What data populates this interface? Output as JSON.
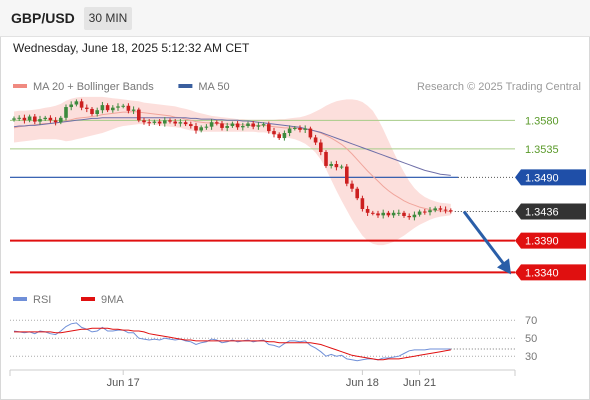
{
  "header": {
    "symbol": "GBP/USD",
    "interval": "30 MIN"
  },
  "datetime": "Wednesday, June 18, 2025 5:12:32 AM CET",
  "legend": [
    {
      "label": "MA 20 + Bollinger Bands",
      "color": "#f08a80"
    },
    {
      "label": "MA 50",
      "color": "#3a5f9e"
    }
  ],
  "copyright": "Research © 2025 Trading Central",
  "colors": {
    "bull": "#3d8a3d",
    "bear": "#cc1f1f",
    "resistance": "#1f4fa8",
    "support": "#e01010",
    "target": "#a7cc88",
    "price_tag": "#333333",
    "arrow": "#2a5ea8",
    "bb_fill": "#fbd7d3",
    "ma20": "#f0a59c",
    "ma50": "#6f6fa8",
    "rsi": "#6f8fd8",
    "rsi_ma": "#e01010"
  },
  "chart_data": {
    "type": "candlestick",
    "price_range": [
      1.332,
      1.362
    ],
    "levels": [
      {
        "value": 1.358,
        "label": "1.3580",
        "kind": "target"
      },
      {
        "value": 1.3535,
        "label": "1.3535",
        "kind": "target"
      },
      {
        "value": 1.349,
        "label": "1.3490",
        "kind": "resistance"
      },
      {
        "value": 1.3436,
        "label": "1.3436",
        "kind": "price"
      },
      {
        "value": 1.339,
        "label": "1.3390",
        "kind": "support"
      },
      {
        "value": 1.334,
        "label": "1.3340",
        "kind": "support"
      }
    ],
    "close": [
      1.3583,
      1.3584,
      1.358,
      1.3586,
      1.3578,
      1.3582,
      1.3584,
      1.358,
      1.3577,
      1.3584,
      1.3601,
      1.3605,
      1.361,
      1.36,
      1.3598,
      1.359,
      1.3596,
      1.3604,
      1.3596,
      1.36,
      1.3602,
      1.3603,
      1.3595,
      1.3597,
      1.358,
      1.3577,
      1.3576,
      1.3578,
      1.3575,
      1.358,
      1.3578,
      1.3575,
      1.3577,
      1.3574,
      1.3571,
      1.3564,
      1.3569,
      1.357,
      1.3577,
      1.3575,
      1.3568,
      1.3571,
      1.3575,
      1.3569,
      1.3571,
      1.3575,
      1.357,
      1.3572,
      1.3574,
      1.3563,
      1.3558,
      1.3552,
      1.356,
      1.3567,
      1.3568,
      1.3565,
      1.3567,
      1.3553,
      1.3545,
      1.353,
      1.3508,
      1.3511,
      1.3506,
      1.3507,
      1.348,
      1.3472,
      1.3457,
      1.344,
      1.3434,
      1.3433,
      1.343,
      1.3434,
      1.343,
      1.3434,
      1.3434,
      1.3429,
      1.3427,
      1.3431,
      1.3436,
      1.3435,
      1.3438,
      1.3441,
      1.3439,
      1.3438,
      1.3436
    ],
    "ma20": [
      1.3568,
      1.357,
      1.3571,
      1.3572,
      1.3573,
      1.3574,
      1.3575,
      1.3575,
      1.3576,
      1.3577,
      1.3579,
      1.3581,
      1.3583,
      1.3584,
      1.3585,
      1.3586,
      1.3587,
      1.3589,
      1.359,
      1.3591,
      1.3592,
      1.3593,
      1.3593,
      1.3594,
      1.3593,
      1.3592,
      1.3591,
      1.359,
      1.3589,
      1.3588,
      1.3587,
      1.3585,
      1.3584,
      1.3582,
      1.358,
      1.3578,
      1.3577,
      1.3576,
      1.3576,
      1.3575,
      1.3575,
      1.3574,
      1.3574,
      1.3573,
      1.3573,
      1.3572,
      1.3572,
      1.3572,
      1.3572,
      1.3571,
      1.357,
      1.3569,
      1.3568,
      1.3568,
      1.3568,
      1.3567,
      1.3566,
      1.3565,
      1.3563,
      1.356,
      1.3556,
      1.3552,
      1.3547,
      1.3542,
      1.3535,
      1.3527,
      1.3518,
      1.3509,
      1.35,
      1.3492,
      1.3484,
      1.3476,
      1.3469,
      1.3463,
      1.3458,
      1.3453,
      1.3449,
      1.3446,
      1.3443,
      1.3441,
      1.3439,
      1.3438,
      1.3437,
      1.3436,
      1.3436
    ],
    "bb_upper": [
      1.3594,
      1.3595,
      1.3595,
      1.3596,
      1.3597,
      1.3598,
      1.36,
      1.3601,
      1.3603,
      1.3606,
      1.3611,
      1.3614,
      1.3616,
      1.3617,
      1.3617,
      1.3617,
      1.3617,
      1.3617,
      1.3616,
      1.3615,
      1.3614,
      1.3613,
      1.3612,
      1.3611,
      1.361,
      1.3608,
      1.3607,
      1.3606,
      1.3605,
      1.3604,
      1.3603,
      1.3602,
      1.36,
      1.3598,
      1.3596,
      1.3593,
      1.3591,
      1.3589,
      1.3587,
      1.3586,
      1.3585,
      1.3584,
      1.3583,
      1.3582,
      1.3582,
      1.3581,
      1.3581,
      1.3581,
      1.3581,
      1.3581,
      1.3581,
      1.3582,
      1.3582,
      1.3583,
      1.3584,
      1.3585,
      1.3587,
      1.359,
      1.3594,
      1.3598,
      1.3603,
      1.3607,
      1.361,
      1.3612,
      1.3613,
      1.3613,
      1.3612,
      1.3609,
      1.3603,
      1.3595,
      1.3582,
      1.3566,
      1.3548,
      1.353,
      1.3513,
      1.3498,
      1.3484,
      1.3473,
      1.3465,
      1.3459,
      1.3455,
      1.3452,
      1.345,
      1.3449,
      1.3448
    ],
    "bb_lower": [
      1.3545,
      1.3546,
      1.3547,
      1.3548,
      1.3549,
      1.355,
      1.355,
      1.355,
      1.355,
      1.3549,
      1.3547,
      1.3548,
      1.355,
      1.3552,
      1.3554,
      1.3556,
      1.3558,
      1.356,
      1.3563,
      1.3566,
      1.3569,
      1.3571,
      1.3572,
      1.3573,
      1.3574,
      1.3574,
      1.3574,
      1.3573,
      1.3572,
      1.3571,
      1.357,
      1.3569,
      1.3568,
      1.3566,
      1.3564,
      1.3563,
      1.3562,
      1.3562,
      1.3562,
      1.3562,
      1.3562,
      1.3562,
      1.3562,
      1.3562,
      1.3562,
      1.3562,
      1.3562,
      1.3561,
      1.3561,
      1.356,
      1.3558,
      1.3556,
      1.3554,
      1.3552,
      1.355,
      1.3547,
      1.3543,
      1.3537,
      1.3529,
      1.3518,
      1.3503,
      1.3486,
      1.3469,
      1.3453,
      1.3438,
      1.3423,
      1.341,
      1.3398,
      1.339,
      1.3385,
      1.3383,
      1.3383,
      1.3385,
      1.3388,
      1.3393,
      1.3398,
      1.3404,
      1.341,
      1.3415,
      1.3419,
      1.3423,
      1.3426,
      1.3428,
      1.3429,
      1.343
    ],
    "ma50": [
      1.357,
      1.3571,
      1.3571,
      1.3572,
      1.3572,
      1.3573,
      1.3574,
      1.3575,
      1.3576,
      1.3577,
      1.3578,
      1.3579,
      1.358,
      1.3581,
      1.3582,
      1.3583,
      1.3583,
      1.3584,
      1.3584,
      1.3584,
      1.3584,
      1.3584,
      1.3584,
      1.3584,
      1.3584,
      1.3584,
      1.3584,
      1.3584,
      1.3584,
      1.3584,
      1.3584,
      1.3584,
      1.3584,
      1.3584,
      1.3583,
      1.3583,
      1.3582,
      1.3582,
      1.3582,
      1.3581,
      1.3581,
      1.358,
      1.358,
      1.358,
      1.3579,
      1.3579,
      1.3578,
      1.3577,
      1.3576,
      1.3575,
      1.3574,
      1.3573,
      1.3572,
      1.3571,
      1.357,
      1.3569,
      1.3567,
      1.3565,
      1.3563,
      1.3561,
      1.3558,
      1.3555,
      1.3552,
      1.3549,
      1.3546,
      1.3543,
      1.354,
      1.3537,
      1.3534,
      1.3531,
      1.3528,
      1.3525,
      1.3522,
      1.3519,
      1.3516,
      1.3513,
      1.351,
      1.3507,
      1.3504,
      1.3501,
      1.3499,
      1.3497,
      1.3495,
      1.3494,
      1.3493
    ],
    "projection": {
      "from": 1.3436,
      "to": 1.334
    },
    "x_ticks": [
      {
        "index": 21,
        "label": "Jun 17"
      },
      {
        "index": 67,
        "label": "Jun 18"
      },
      {
        "index": 78,
        "label": "Jun 21"
      }
    ],
    "rsi": {
      "legend": [
        {
          "label": "RSI",
          "color": "#6f8fd8"
        },
        {
          "label": "9MA",
          "color": "#e01010"
        }
      ],
      "levels": [
        {
          "value": 70,
          "label": "70"
        },
        {
          "value": 50,
          "label": "50"
        },
        {
          "value": 30,
          "label": "30"
        }
      ],
      "range": [
        18,
        78
      ],
      "values": [
        58,
        57,
        56,
        57,
        55,
        58,
        57,
        55,
        54,
        58,
        63,
        66,
        67,
        62,
        60,
        57,
        58,
        62,
        58,
        58,
        59,
        59,
        56,
        56,
        50,
        49,
        48,
        49,
        48,
        50,
        49,
        48,
        49,
        47,
        46,
        43,
        45,
        46,
        49,
        48,
        45,
        46,
        48,
        46,
        47,
        48,
        46,
        47,
        48,
        43,
        42,
        40,
        44,
        47,
        47,
        46,
        47,
        42,
        39,
        35,
        30,
        32,
        30,
        31,
        27,
        26,
        25,
        26,
        27,
        27,
        26,
        28,
        28,
        29,
        30,
        33,
        36,
        37,
        37,
        37,
        38,
        38,
        38,
        38,
        38
      ],
      "ma": [
        57,
        57,
        57,
        57,
        57,
        57,
        57,
        57,
        56,
        56,
        57,
        58,
        59,
        60,
        60,
        61,
        61,
        61,
        61,
        60,
        60,
        59,
        59,
        58,
        58,
        57,
        55,
        54,
        53,
        52,
        51,
        50,
        49,
        48,
        48,
        47,
        47,
        47,
        47,
        47,
        47,
        47,
        47,
        47,
        47,
        47,
        47,
        47,
        47,
        46,
        46,
        45,
        45,
        45,
        45,
        45,
        45,
        45,
        44,
        43,
        41,
        39,
        37,
        35,
        33,
        31,
        30,
        29,
        28,
        27,
        26,
        26,
        27,
        27,
        27,
        28,
        29,
        30,
        31,
        32,
        33,
        34,
        35,
        36,
        37
      ]
    }
  }
}
